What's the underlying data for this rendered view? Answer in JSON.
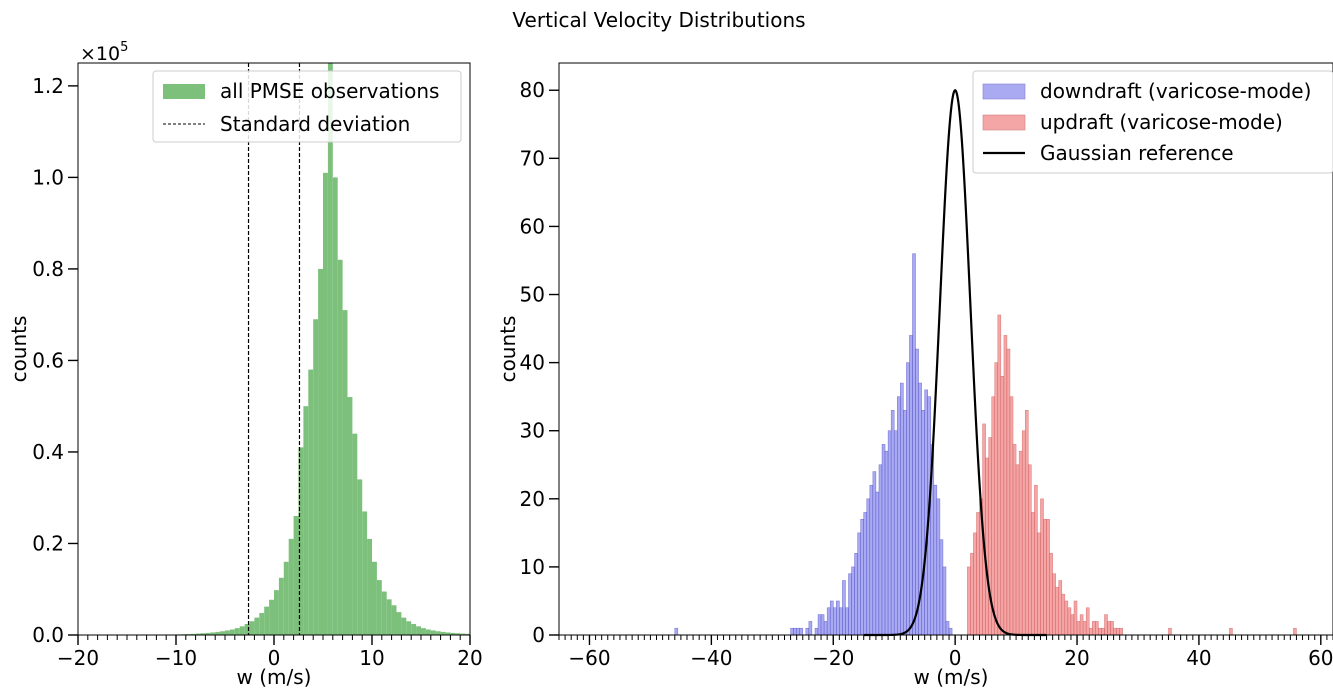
{
  "figure": {
    "title": "Vertical Velocity Distributions"
  },
  "chart_data": [
    {
      "type": "bar",
      "subtype": "histogram",
      "xlabel": "w (m/s)",
      "ylabel": "counts",
      "offset_label": "×10",
      "offset_exp": "5",
      "xlim": [
        -20,
        20
      ],
      "ylim": [
        0,
        125000
      ],
      "xticks": [
        -20,
        -10,
        0,
        10,
        20
      ],
      "xtick_labels": [
        "−20",
        "−10",
        "0",
        "10",
        "20"
      ],
      "yticks": [
        0,
        20000,
        40000,
        60000,
        80000,
        100000,
        120000
      ],
      "ytick_labels": [
        "0.0",
        "0.2",
        "0.4",
        "0.6",
        "0.8",
        "1.0",
        "1.2"
      ],
      "minor_xtick_step": 1,
      "grid": false,
      "legend_position": "top-right",
      "bin_width": 0.5,
      "series": [
        {
          "name": "all PMSE observations",
          "color": "#7cc07c",
          "bin_edges_start": -20,
          "values": [
            0,
            0,
            0,
            0,
            0,
            0,
            0,
            0,
            0,
            0,
            0,
            0,
            0,
            0,
            0,
            0,
            20,
            40,
            60,
            90,
            120,
            160,
            200,
            250,
            310,
            380,
            460,
            560,
            680,
            820,
            1000,
            1200,
            1500,
            1900,
            2400,
            3000,
            3800,
            4800,
            6200,
            7700,
            9800,
            12500,
            16000,
            21000,
            26000,
            41000,
            50000,
            58000,
            69000,
            80000,
            101000,
            138000,
            100000,
            82000,
            71000,
            52000,
            44000,
            34000,
            27000,
            21000,
            16000,
            12000,
            9500,
            7800,
            6500,
            5000,
            3800,
            3000,
            2400,
            1900,
            1500,
            1200,
            1000,
            820,
            680,
            560,
            460,
            380,
            310,
            250,
            200,
            150,
            110,
            80,
            50,
            30,
            20,
            10,
            0,
            0,
            0
          ]
        },
        {
          "name": "Standard deviation",
          "type": "vline",
          "color": "#000000",
          "linestyle": "dashed",
          "x": [
            -2.6,
            2.6
          ]
        }
      ]
    },
    {
      "type": "bar",
      "subtype": "histogram",
      "xlabel": "w (m/s)",
      "ylabel": "counts",
      "xlim": [
        -65,
        62
      ],
      "ylim": [
        0,
        84
      ],
      "xticks": [
        -60,
        -40,
        -20,
        0,
        20,
        40,
        60
      ],
      "xtick_labels": [
        "−60",
        "−40",
        "−20",
        "0",
        "20",
        "40",
        "60"
      ],
      "yticks": [
        0,
        10,
        20,
        30,
        40,
        50,
        60,
        70,
        80
      ],
      "ytick_labels": [
        "0",
        "10",
        "20",
        "30",
        "40",
        "50",
        "60",
        "70",
        "80"
      ],
      "minor_xtick_step": 1,
      "grid": false,
      "legend_position": "top-right",
      "bin_width": 0.5,
      "series": [
        {
          "name": "downdraft (varicose-mode)",
          "color": "#aaaaf2",
          "edge_color": "#2020b0",
          "bin_edges_start": -46,
          "values": [
            1,
            0,
            0,
            0,
            0,
            0,
            0,
            0,
            0,
            0,
            0,
            0,
            0,
            0,
            0,
            0,
            0,
            0,
            0,
            0,
            0,
            0,
            0,
            0,
            0,
            0,
            0,
            0,
            0,
            0,
            0,
            0,
            0,
            0,
            0,
            0,
            0,
            0,
            1,
            1,
            1,
            1,
            0,
            1,
            2,
            0,
            1,
            3,
            3,
            2,
            4,
            5,
            4,
            5,
            4,
            8,
            4,
            9,
            10,
            12,
            15,
            17,
            18,
            20,
            22,
            24,
            21,
            25,
            28,
            27,
            30,
            33,
            30,
            35,
            37,
            33,
            40,
            44,
            56,
            42,
            37,
            33,
            36,
            35,
            28,
            22,
            20,
            14,
            10,
            2,
            1
          ]
        },
        {
          "name": "updraft (varicose-mode)",
          "color": "#f4a6a6",
          "edge_color": "#c03030",
          "bin_edges_start": 2,
          "values": [
            10,
            12,
            15,
            18,
            20,
            31,
            26,
            29,
            35,
            40,
            47,
            38,
            44,
            42,
            35,
            28,
            25,
            27,
            30,
            33,
            25,
            18,
            22,
            15,
            20,
            17,
            17,
            12,
            9,
            7,
            8,
            6,
            5,
            4,
            3,
            5,
            2,
            3,
            2,
            4,
            1,
            2,
            2,
            1,
            1,
            3,
            2,
            2,
            1,
            1,
            1,
            0,
            0,
            0,
            0,
            0,
            0,
            0,
            0,
            0,
            0,
            0,
            0,
            0,
            0,
            0,
            1,
            0,
            0,
            0,
            0,
            0,
            0,
            0,
            0,
            0,
            0,
            0,
            0,
            0,
            0,
            0,
            0,
            0,
            0,
            0,
            1,
            0,
            0,
            0,
            0,
            0,
            0,
            0,
            0,
            0,
            0,
            0,
            0,
            0,
            0,
            0,
            0,
            0,
            0,
            0,
            0,
            1
          ]
        },
        {
          "name": "Gaussian reference",
          "type": "line",
          "color": "#000000",
          "peak": 80,
          "mean": 0,
          "sigma": 2.5
        }
      ]
    }
  ]
}
